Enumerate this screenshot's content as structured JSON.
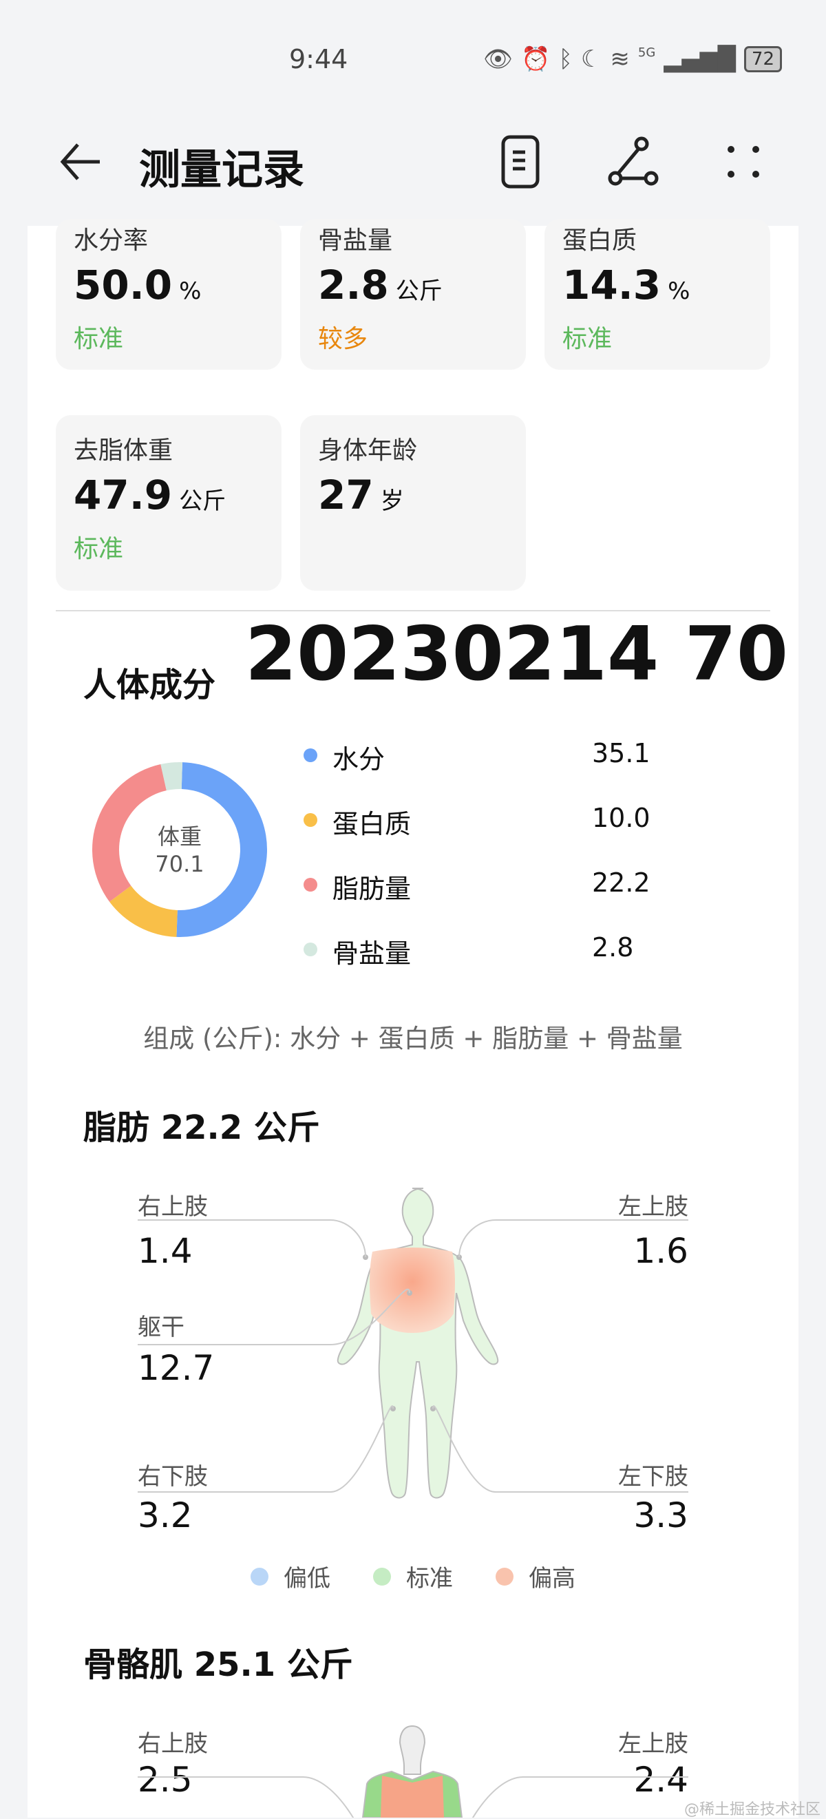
{
  "status_bar": {
    "time": "9:44",
    "network": "5G",
    "battery": "72"
  },
  "header": {
    "title": "测量记录",
    "icons": [
      "back-arrow-icon",
      "report-scroll-icon",
      "share-icon",
      "more-dots-icon"
    ]
  },
  "metrics": [
    {
      "label": "水分率",
      "value": "50.0",
      "unit": "%",
      "status": "标准",
      "status_color": "#5cb85c"
    },
    {
      "label": "骨盐量",
      "value": "2.8",
      "unit": "公斤",
      "status": "较多",
      "status_color": "#e8870e"
    },
    {
      "label": "蛋白质",
      "value": "14.3",
      "unit": "%",
      "status": "标准",
      "status_color": "#5cb85c"
    },
    {
      "label": "去脂体重",
      "value": "47.9",
      "unit": "公斤",
      "status": "标准",
      "status_color": "#5cb85c"
    },
    {
      "label": "身体年龄",
      "value": "27",
      "unit": "岁",
      "status": "",
      "status_color": ""
    }
  ],
  "composition": {
    "title": "人体成分",
    "overlay": "20230214  70",
    "center_label": "体重",
    "center_value": "70.1",
    "items": [
      {
        "label": "水分",
        "value": "35.1",
        "color": "#6ba3f8"
      },
      {
        "label": "蛋白质",
        "value": "10.0",
        "color": "#f9bf48"
      },
      {
        "label": "脂肪量",
        "value": "22.2",
        "color": "#f48c8c"
      },
      {
        "label": "骨盐量",
        "value": "2.8",
        "color": "#d4e8df"
      }
    ],
    "note": "组成 (公斤):  水分 + 蛋白质 + 脂肪量 + 骨盐量"
  },
  "fat": {
    "title": "脂肪 22.2 公斤",
    "right_upper": {
      "label": "右上肢",
      "value": "1.4"
    },
    "left_upper": {
      "label": "左上肢",
      "value": "1.6"
    },
    "trunk": {
      "label": "躯干",
      "value": "12.7"
    },
    "right_lower": {
      "label": "右下肢",
      "value": "3.2"
    },
    "left_lower": {
      "label": "左下肢",
      "value": "3.3"
    }
  },
  "legend": [
    {
      "label": "偏低",
      "color": "#b9d6f7"
    },
    {
      "label": "标准",
      "color": "#c5ecc3"
    },
    {
      "label": "偏高",
      "color": "#f9c3ad"
    }
  ],
  "muscle": {
    "title": "骨骼肌 25.1 公斤",
    "right_upper": {
      "label": "右上肢",
      "value": "2.5"
    },
    "left_upper": {
      "label": "左上肢",
      "value": "2.4"
    }
  },
  "watermark": "@稀土掘金技术社区"
}
